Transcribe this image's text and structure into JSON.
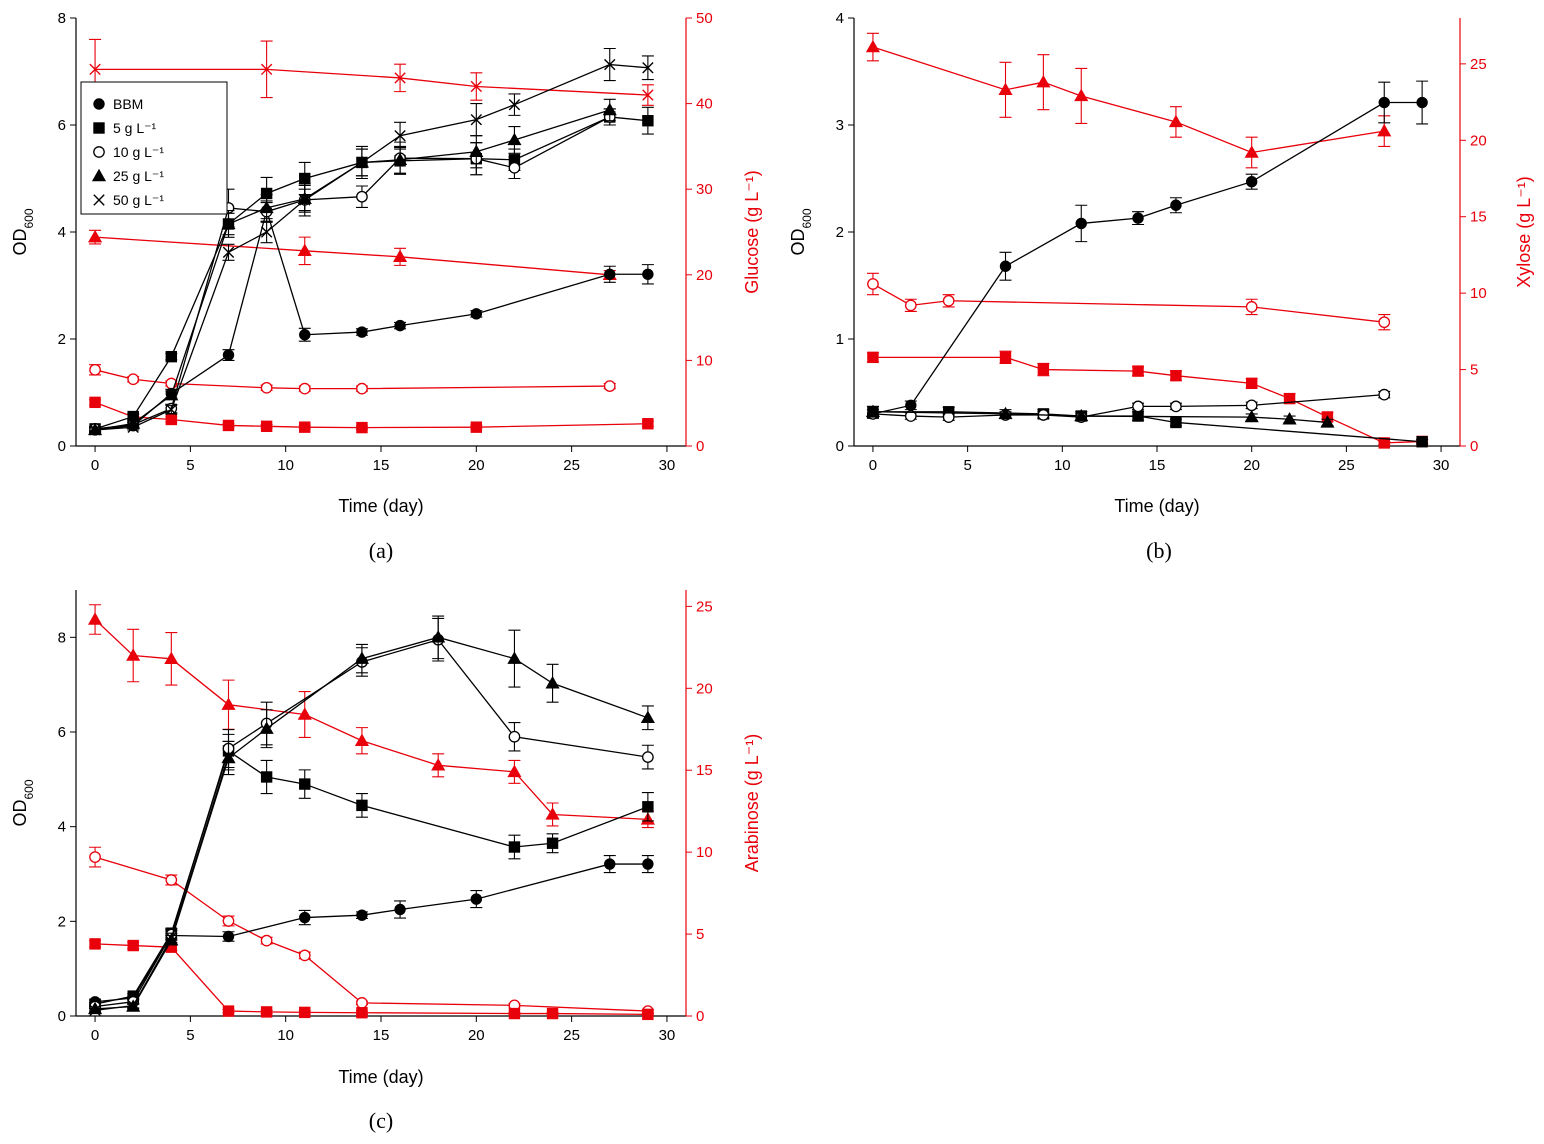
{
  "colors": {
    "od": "#000000",
    "sugar": "#e8000b"
  },
  "legend": {
    "entries": [
      {
        "marker": "circle-filled",
        "label": "BBM"
      },
      {
        "marker": "square-filled",
        "label": "5 g L⁻¹"
      },
      {
        "marker": "circle-open",
        "label": "10 g L⁻¹"
      },
      {
        "marker": "triangle-filled",
        "label": "25 g L⁻¹"
      },
      {
        "marker": "cross",
        "label": "50 g L⁻¹"
      }
    ]
  },
  "chart_data": [
    {
      "type": "line",
      "panel_label": "(a)",
      "xlabel": "Time (day)",
      "ylabel_main": "OD",
      "ylabel_sub": "600",
      "y2label": "Glucose (g L⁻¹)",
      "xlim": [
        -1,
        31
      ],
      "xticks": [
        0,
        5,
        10,
        15,
        20,
        25,
        30
      ],
      "ylim": [
        0,
        8
      ],
      "yticks": [
        0,
        2,
        4,
        6,
        8
      ],
      "y2lim": [
        0,
        50
      ],
      "y2ticks": [
        0,
        10,
        20,
        30,
        40,
        50
      ],
      "series": [
        {
          "axis": "left",
          "marker": "circle-filled",
          "legend": "BBM",
          "x": [
            0,
            2,
            4,
            7,
            9,
            11,
            14,
            16,
            20,
            27,
            29
          ],
          "y": [
            0.3,
            0.38,
            0.98,
            1.7,
            4.4,
            2.08,
            2.13,
            2.25,
            2.47,
            3.21,
            3.21
          ],
          "err": [
            0.05,
            0.05,
            0.08,
            0.1,
            0.15,
            0.12,
            0.06,
            0.06,
            0.06,
            0.15,
            0.18
          ]
        },
        {
          "axis": "left",
          "marker": "square-filled",
          "legend": "5 g L⁻¹",
          "x": [
            0,
            2,
            4,
            7,
            9,
            11,
            14,
            16,
            20,
            22,
            27,
            29
          ],
          "y": [
            0.32,
            0.55,
            1.67,
            4.15,
            4.72,
            5.0,
            5.3,
            5.33,
            5.37,
            5.35,
            6.15,
            6.08
          ],
          "err": [
            0.04,
            0.05,
            0.06,
            0.2,
            0.3,
            0.3,
            0.25,
            0.25,
            0.3,
            0.2,
            0.15,
            0.25
          ]
        },
        {
          "axis": "left",
          "marker": "circle-open",
          "legend": "10 g L⁻¹",
          "x": [
            0,
            2,
            4,
            7,
            9,
            11,
            14,
            16,
            20,
            22,
            27
          ],
          "y": [
            0.32,
            0.4,
            0.7,
            4.45,
            4.38,
            4.6,
            4.66,
            5.38,
            5.37,
            5.2,
            6.15
          ],
          "err": [
            0.04,
            0.05,
            0.08,
            0.35,
            0.2,
            0.2,
            0.2,
            0.3,
            0.3,
            0.2,
            0.15
          ]
        },
        {
          "axis": "left",
          "marker": "triangle-filled",
          "legend": "25 g L⁻¹",
          "x": [
            0,
            2,
            4,
            7,
            9,
            11,
            14,
            16,
            20,
            22,
            27
          ],
          "y": [
            0.3,
            0.42,
            0.95,
            4.15,
            4.45,
            4.62,
            5.3,
            5.35,
            5.5,
            5.72,
            6.28
          ],
          "err": [
            0.04,
            0.05,
            0.08,
            0.25,
            0.25,
            0.25,
            0.25,
            0.25,
            0.3,
            0.25,
            0.2
          ]
        },
        {
          "axis": "left",
          "marker": "cross",
          "legend": "50 g L⁻¹",
          "x": [
            0,
            2,
            4,
            7,
            9,
            11,
            14,
            16,
            20,
            22,
            27,
            29
          ],
          "y": [
            0.3,
            0.35,
            0.68,
            3.62,
            4.0,
            4.6,
            5.3,
            5.8,
            6.1,
            6.38,
            7.13,
            7.07
          ],
          "err": [
            0.04,
            0.05,
            0.08,
            0.15,
            0.2,
            0.3,
            0.3,
            0.25,
            0.3,
            0.2,
            0.3,
            0.22
          ]
        },
        {
          "axis": "right",
          "marker": "cross",
          "x": [
            0,
            9,
            16,
            20,
            29
          ],
          "y": [
            44,
            44,
            43,
            42,
            41
          ],
          "err": [
            3.5,
            3.3,
            1.6,
            1.6,
            1.2
          ]
        },
        {
          "axis": "right",
          "marker": "triangle-filled",
          "x": [
            0,
            11,
            16,
            27
          ],
          "y": [
            24.4,
            22.8,
            22.1,
            20.0
          ],
          "err": [
            0.8,
            1.6,
            1.0,
            0.5
          ]
        },
        {
          "axis": "right",
          "marker": "circle-open",
          "x": [
            0,
            2,
            4,
            9,
            11,
            14,
            27
          ],
          "y": [
            8.9,
            7.8,
            7.3,
            6.8,
            6.7,
            6.7,
            7.0
          ],
          "err": [
            0.6,
            0.3,
            0.3,
            0.3,
            0.3,
            0.3,
            0.3
          ]
        },
        {
          "axis": "right",
          "marker": "square-filled",
          "x": [
            0,
            2,
            4,
            7,
            9,
            11,
            14,
            20,
            29
          ],
          "y": [
            5.1,
            3.4,
            3.1,
            2.4,
            2.3,
            2.2,
            2.15,
            2.2,
            2.6
          ],
          "err": [
            0.3,
            0.3,
            0.3,
            0.2,
            0.2,
            0.2,
            0.2,
            0.2,
            0.3
          ]
        }
      ]
    },
    {
      "type": "line",
      "panel_label": "(b)",
      "xlabel": "Time (day)",
      "ylabel_main": "OD",
      "ylabel_sub": "600",
      "y2label": "Xylose (g L⁻¹)",
      "xlim": [
        -1,
        31
      ],
      "xticks": [
        0,
        5,
        10,
        15,
        20,
        25,
        30
      ],
      "ylim": [
        0,
        4
      ],
      "yticks": [
        0,
        1,
        2,
        3,
        4
      ],
      "y2lim": [
        0,
        28
      ],
      "y2ticks": [
        0,
        5,
        10,
        15,
        20,
        25
      ],
      "series": [
        {
          "axis": "left",
          "marker": "circle-filled",
          "legend": "BBM",
          "x": [
            0,
            2,
            7,
            11,
            14,
            16,
            20,
            27,
            29
          ],
          "y": [
            0.3,
            0.38,
            1.68,
            2.08,
            2.13,
            2.25,
            2.47,
            3.21,
            3.21
          ],
          "err": [
            0.04,
            0.04,
            0.13,
            0.17,
            0.06,
            0.07,
            0.07,
            0.19,
            0.2
          ]
        },
        {
          "axis": "left",
          "marker": "square-filled",
          "legend": "5 g L⁻¹",
          "x": [
            0,
            4,
            9,
            11,
            14,
            16,
            29
          ],
          "y": [
            0.32,
            0.32,
            0.3,
            0.28,
            0.28,
            0.22,
            0.04
          ],
          "err": [
            0.05,
            0.04,
            0.04,
            0.04,
            0.04,
            0.03,
            0.02
          ]
        },
        {
          "axis": "left",
          "marker": "circle-open",
          "legend": "10 g L⁻¹",
          "x": [
            0,
            2,
            4,
            7,
            9,
            11,
            14,
            16,
            20,
            27
          ],
          "y": [
            0.3,
            0.28,
            0.27,
            0.29,
            0.29,
            0.27,
            0.37,
            0.37,
            0.38,
            0.48
          ],
          "err": [
            0.04,
            0.03,
            0.03,
            0.03,
            0.03,
            0.03,
            0.03,
            0.03,
            0.03,
            0.03
          ]
        },
        {
          "axis": "left",
          "marker": "triangle-filled",
          "legend": "25 g L⁻¹",
          "x": [
            0,
            7,
            11,
            20,
            22,
            24
          ],
          "y": [
            0.32,
            0.3,
            0.28,
            0.27,
            0.25,
            0.22
          ],
          "err": [
            0.05,
            0.04,
            0.04,
            0.03,
            0.03,
            0.03
          ]
        },
        {
          "axis": "right",
          "marker": "triangle-filled",
          "x": [
            0,
            7,
            9,
            11,
            16,
            20,
            27
          ],
          "y": [
            26.1,
            23.3,
            23.8,
            22.9,
            21.2,
            19.2,
            20.6
          ],
          "err": [
            0.9,
            1.8,
            1.8,
            1.8,
            1.0,
            1.0,
            1.0
          ]
        },
        {
          "axis": "right",
          "marker": "circle-open",
          "x": [
            0,
            2,
            4,
            20,
            27
          ],
          "y": [
            10.6,
            9.2,
            9.5,
            9.1,
            8.1
          ],
          "err": [
            0.7,
            0.4,
            0.4,
            0.5,
            0.5
          ]
        },
        {
          "axis": "right",
          "marker": "square-filled",
          "x": [
            0,
            7,
            9,
            14,
            16,
            20,
            22,
            24,
            27,
            29
          ],
          "y": [
            5.8,
            5.8,
            5.0,
            4.9,
            4.6,
            4.1,
            3.1,
            1.9,
            0.2,
            0.3
          ],
          "err": [
            0.3,
            0.4,
            0.4,
            0.3,
            0.3,
            0.3,
            0.3,
            0.3,
            0.1,
            0.1
          ]
        }
      ]
    },
    {
      "type": "line",
      "panel_label": "(c)",
      "xlabel": "Time (day)",
      "ylabel_main": "OD",
      "ylabel_sub": "600",
      "y2label": "Arabinose (g L⁻¹)",
      "xlim": [
        -1,
        31
      ],
      "xticks": [
        0,
        5,
        10,
        15,
        20,
        25,
        30
      ],
      "ylim": [
        0,
        9
      ],
      "yticks": [
        0,
        2,
        4,
        6,
        8
      ],
      "y2lim": [
        0,
        26
      ],
      "y2ticks": [
        0,
        5,
        10,
        15,
        20,
        25
      ],
      "series": [
        {
          "axis": "left",
          "marker": "circle-filled",
          "legend": "BBM",
          "x": [
            0,
            2,
            4,
            7,
            11,
            14,
            16,
            20,
            27,
            29
          ],
          "y": [
            0.3,
            0.38,
            1.7,
            1.68,
            2.08,
            2.13,
            2.25,
            2.47,
            3.21,
            3.21
          ],
          "err": [
            0.04,
            0.04,
            0.1,
            0.1,
            0.15,
            0.07,
            0.18,
            0.18,
            0.18,
            0.18
          ]
        },
        {
          "axis": "left",
          "marker": "square-filled",
          "legend": "5 g L⁻¹",
          "x": [
            0,
            2,
            4,
            7,
            9,
            11,
            14,
            22,
            24,
            29
          ],
          "y": [
            0.25,
            0.42,
            1.75,
            5.6,
            5.05,
            4.9,
            4.45,
            3.57,
            3.65,
            4.42
          ],
          "err": [
            0.04,
            0.05,
            0.1,
            0.35,
            0.35,
            0.3,
            0.25,
            0.25,
            0.2,
            0.3
          ]
        },
        {
          "axis": "left",
          "marker": "circle-open",
          "legend": "10 g L⁻¹",
          "x": [
            0,
            2,
            4,
            7,
            9,
            14,
            18,
            22,
            29
          ],
          "y": [
            0.2,
            0.3,
            1.72,
            5.65,
            6.18,
            7.48,
            7.95,
            5.9,
            5.47
          ],
          "err": [
            0.04,
            0.05,
            0.1,
            0.4,
            0.45,
            0.3,
            0.45,
            0.3,
            0.25
          ]
        },
        {
          "axis": "left",
          "marker": "triangle-filled",
          "legend": "25 g L⁻¹",
          "x": [
            0,
            2,
            4,
            7,
            9,
            14,
            18,
            22,
            24,
            29
          ],
          "y": [
            0.15,
            0.2,
            1.6,
            5.45,
            6.07,
            7.55,
            8.0,
            7.55,
            7.03,
            6.3
          ],
          "err": [
            0.04,
            0.05,
            0.1,
            0.35,
            0.4,
            0.3,
            0.45,
            0.6,
            0.4,
            0.25
          ]
        },
        {
          "axis": "left",
          "marker": "cross",
          "legend": "50 g L⁻¹",
          "x": [
            0,
            2,
            4,
            7
          ],
          "y": [
            0.12,
            0.22,
            1.65,
            5.5
          ],
          "err": [
            0.04,
            0.05,
            0.1,
            0.3
          ]
        },
        {
          "axis": "right",
          "marker": "triangle-filled",
          "x": [
            0,
            2,
            4,
            7,
            11,
            14,
            18,
            22,
            24,
            29
          ],
          "y": [
            24.2,
            22.0,
            21.8,
            19.0,
            18.4,
            16.8,
            15.3,
            14.9,
            12.3,
            12.0
          ],
          "err": [
            0.9,
            1.6,
            1.6,
            1.5,
            1.4,
            0.8,
            0.7,
            0.7,
            0.7,
            0.5
          ]
        },
        {
          "axis": "right",
          "marker": "circle-open",
          "x": [
            0,
            4,
            7,
            9,
            11,
            14,
            22,
            29
          ],
          "y": [
            9.7,
            8.3,
            5.8,
            4.6,
            3.7,
            0.8,
            0.65,
            0.3
          ],
          "err": [
            0.6,
            0.3,
            0.3,
            0.2,
            0.2,
            0.1,
            0.1,
            0.1
          ]
        },
        {
          "axis": "right",
          "marker": "square-filled",
          "x": [
            0,
            2,
            4,
            7,
            9,
            11,
            14,
            22,
            24,
            29
          ],
          "y": [
            4.4,
            4.3,
            4.2,
            0.3,
            0.25,
            0.22,
            0.2,
            0.15,
            0.15,
            0.1
          ],
          "err": [
            0.2,
            0.2,
            0.2,
            0.1,
            0.1,
            0.1,
            0.1,
            0.05,
            0.05,
            0.05
          ]
        }
      ]
    }
  ]
}
